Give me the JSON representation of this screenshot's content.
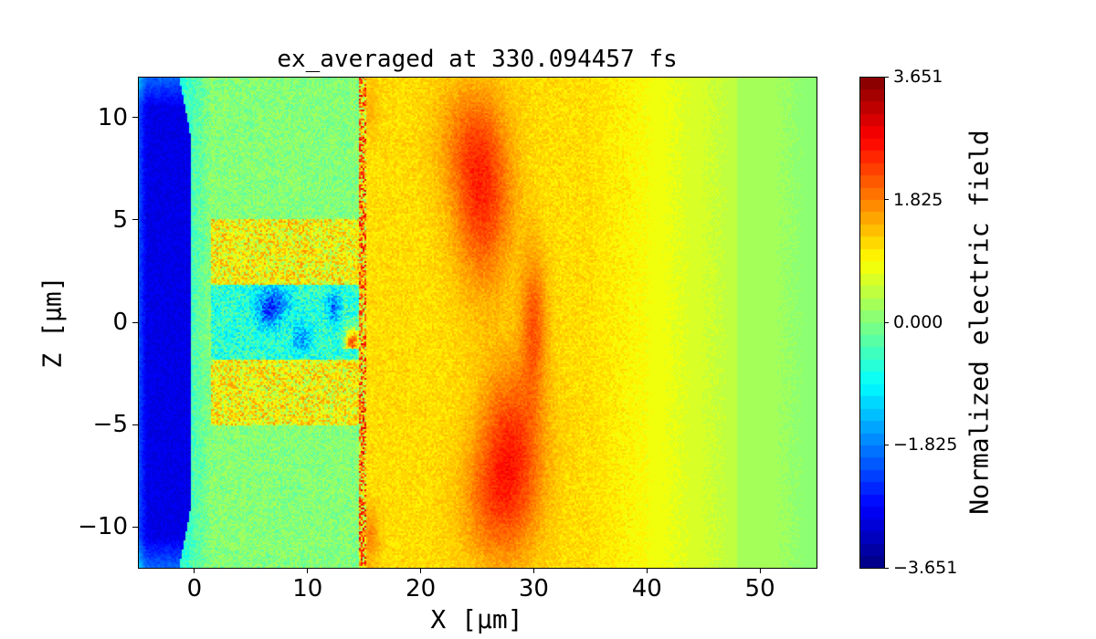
{
  "chart_data": {
    "type": "heatmap",
    "title": "ex_averaged at 330.094457 fs",
    "xlabel": "X [μm]",
    "ylabel": "Z [μm]",
    "xlim": [
      -5,
      55
    ],
    "ylim": [
      -12,
      12
    ],
    "xticks": [
      0,
      10,
      20,
      30,
      40,
      50
    ],
    "xtick_labels": [
      "0",
      "10",
      "20",
      "30",
      "40",
      "50"
    ],
    "yticks": [
      10,
      5,
      0,
      -5,
      -10
    ],
    "ytick_labels": [
      "10",
      "5",
      "0",
      "−5",
      "−10"
    ],
    "colormap": "jet",
    "colorbar": {
      "label": "Normalized electric field",
      "range": [
        -3.651,
        3.651
      ],
      "ticks": [
        3.651,
        1.825,
        0.0,
        -1.825,
        -3.651
      ],
      "tick_labels": [
        "3.651",
        "1.825",
        "0.000",
        "−1.825",
        "−3.651"
      ]
    },
    "features": {
      "negative_region_x": [
        -5,
        0
      ],
      "laser_front_x": 14.5,
      "peak_regions": [
        {
          "x": 25,
          "z": 6,
          "value": 2.3
        },
        {
          "x": 30,
          "z": 0,
          "value": 2.0
        },
        {
          "x": 28,
          "z": -6,
          "value": 2.3
        }
      ]
    }
  }
}
